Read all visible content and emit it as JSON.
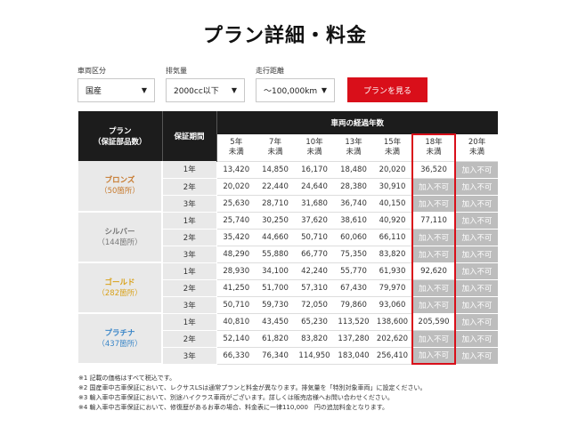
{
  "page_title": "プラン詳細・料金",
  "filters": [
    {
      "label": "車両区分",
      "value": "国産"
    },
    {
      "label": "排気量",
      "value": "2000cc以下"
    },
    {
      "label": "走行距離",
      "value": "〜100,000km"
    }
  ],
  "search_button": "プランを見る",
  "table": {
    "plan_header": "プラン",
    "plan_header_sub": "（保証部品数）",
    "period_header": "保証期間",
    "years_header": "車両の経過年数",
    "year_cols": [
      {
        "line1": "5年",
        "line2": "未満"
      },
      {
        "line1": "7年",
        "line2": "未満"
      },
      {
        "line1": "10年",
        "line2": "未満"
      },
      {
        "line1": "13年",
        "line2": "未満"
      },
      {
        "line1": "15年",
        "line2": "未満"
      },
      {
        "line1": "18年",
        "line2": "未満"
      },
      {
        "line1": "20年",
        "line2": "未満"
      }
    ],
    "plans": [
      {
        "name": "ブロンズ",
        "parts": "（50箇所）",
        "color": "#c77a2e",
        "rows": [
          {
            "period": "1年",
            "values": [
              "13,420",
              "14,850",
              "16,170",
              "18,480",
              "20,020",
              "36,520",
              "加入不可"
            ]
          },
          {
            "period": "2年",
            "values": [
              "20,020",
              "22,440",
              "24,640",
              "28,380",
              "30,910",
              "加入不可",
              "加入不可"
            ]
          },
          {
            "period": "3年",
            "values": [
              "25,630",
              "28,710",
              "31,680",
              "36,740",
              "40,150",
              "加入不可",
              "加入不可"
            ]
          }
        ]
      },
      {
        "name": "シルバー",
        "parts": "（144箇所）",
        "color": "#777777",
        "rows": [
          {
            "period": "1年",
            "values": [
              "25,740",
              "30,250",
              "37,620",
              "38,610",
              "40,920",
              "77,110",
              "加入不可"
            ]
          },
          {
            "period": "2年",
            "values": [
              "35,420",
              "44,660",
              "50,710",
              "60,060",
              "66,110",
              "加入不可",
              "加入不可"
            ]
          },
          {
            "period": "3年",
            "values": [
              "48,290",
              "55,880",
              "66,770",
              "75,350",
              "83,820",
              "加入不可",
              "加入不可"
            ]
          }
        ]
      },
      {
        "name": "ゴールド",
        "parts": "（282箇所）",
        "color": "#d9a21b",
        "rows": [
          {
            "period": "1年",
            "values": [
              "28,930",
              "34,100",
              "42,240",
              "55,770",
              "61,930",
              "92,620",
              "加入不可"
            ]
          },
          {
            "period": "2年",
            "values": [
              "41,250",
              "51,700",
              "57,310",
              "67,430",
              "79,970",
              "加入不可",
              "加入不可"
            ]
          },
          {
            "period": "3年",
            "values": [
              "50,710",
              "59,730",
              "72,050",
              "79,860",
              "93,060",
              "加入不可",
              "加入不可"
            ]
          }
        ]
      },
      {
        "name": "プラチナ",
        "parts": "（437箇所）",
        "color": "#3a86c8",
        "rows": [
          {
            "period": "1年",
            "values": [
              "40,810",
              "43,450",
              "65,230",
              "113,520",
              "138,600",
              "205,590",
              "加入不可"
            ]
          },
          {
            "period": "2年",
            "values": [
              "52,140",
              "61,820",
              "83,820",
              "137,280",
              "202,620",
              "加入不可",
              "加入不可"
            ]
          },
          {
            "period": "3年",
            "values": [
              "66,330",
              "76,340",
              "114,950",
              "183,040",
              "256,410",
              "加入不可",
              "加入不可"
            ]
          }
        ]
      }
    ],
    "na_label": "加入不可"
  },
  "notes": [
    "※1 記載の価格はすべて税込です。",
    "※2 国産車中古車保証において、レクサスLSは通常プランと料金が異なります。排気量を「特別対象車両」に設定ください。",
    "※3 輸入車中古車保証において、別途ハイクラス車両がございます。詳しくは販売店様へお問い合わせください。",
    "※4 輸入車中古車保証において、修復歴があるお車の場合、料金表に一律110,000　円の追加料金となります。"
  ]
}
